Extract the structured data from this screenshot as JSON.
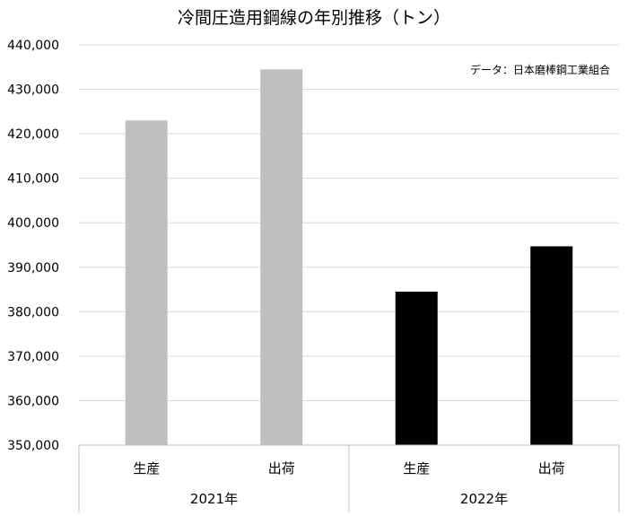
{
  "chart_data": {
    "type": "bar",
    "title": "冷間圧造用鋼線の年別推移（トン）",
    "annotation": "データ：日本磨棒鋼工業組合",
    "groups": [
      {
        "label": "2021年",
        "categories": [
          "生産",
          "出荷"
        ],
        "values": [
          423000,
          434500
        ],
        "color": "#bfbfbf"
      },
      {
        "label": "2022年",
        "categories": [
          "生産",
          "出荷"
        ],
        "values": [
          384500,
          394700
        ],
        "color": "#000000"
      }
    ],
    "ylim": [
      350000,
      440000
    ],
    "yticks": [
      350000,
      360000,
      370000,
      380000,
      390000,
      400000,
      410000,
      420000,
      430000,
      440000
    ],
    "ytick_labels": [
      "350,000",
      "360,000",
      "370,000",
      "380,000",
      "390,000",
      "400,000",
      "410,000",
      "420,000",
      "430,000",
      "440,000"
    ],
    "xlabel": "",
    "ylabel": "",
    "grid": true,
    "legend": "none"
  }
}
